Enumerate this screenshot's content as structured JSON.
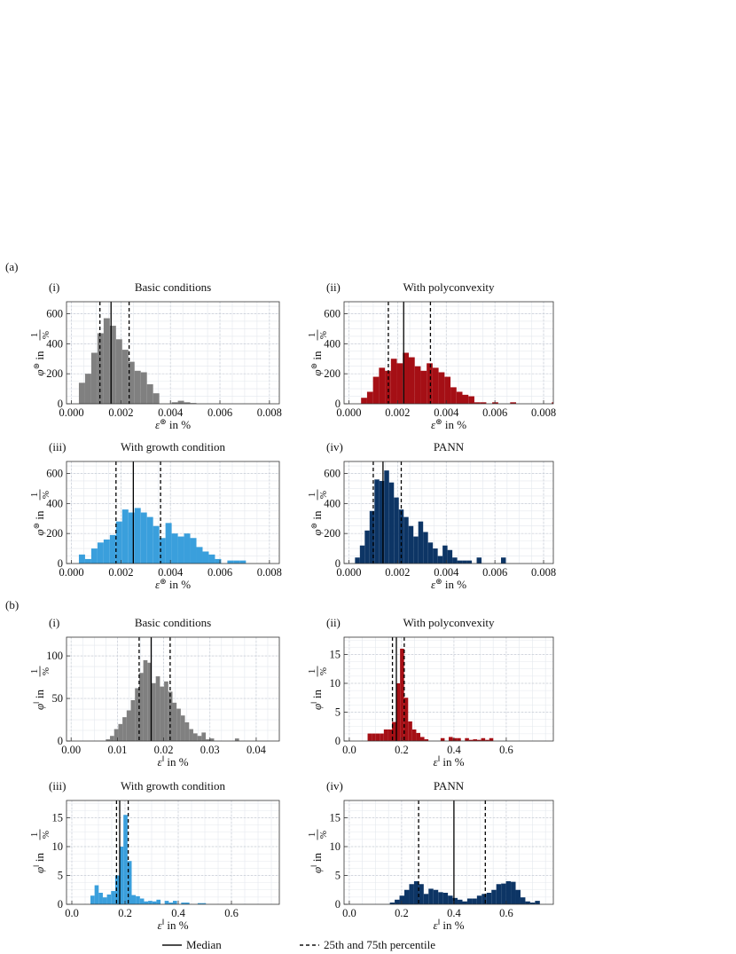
{
  "figure": {
    "section_labels": [
      "(a)",
      "(b)"
    ],
    "legend": {
      "median_label": "Median",
      "percentile_label": "25th and 75th percentile"
    }
  },
  "chart_data": [
    {
      "id": "a-i",
      "section": "(a)",
      "roman": "(i)",
      "title": "Basic conditions",
      "type": "bar",
      "color": "#808080",
      "xlabel": "ε^⊚ in %",
      "ylabel": "φ^⊚ in 1/%",
      "xlim": [
        -0.0002,
        0.0084
      ],
      "ylim": [
        0,
        680
      ],
      "xticks": [
        0,
        0.002,
        0.004,
        0.006,
        0.008
      ],
      "xticklabels": [
        "0.000",
        "0.002",
        "0.004",
        "0.006",
        "0.008"
      ],
      "yticks": [
        0,
        200,
        400,
        600
      ],
      "yticklabels": [
        "0",
        "200",
        "400",
        "600"
      ],
      "bin_start": 0.0003,
      "bin_width": 0.00025,
      "values": [
        140,
        200,
        340,
        470,
        570,
        520,
        430,
        360,
        280,
        220,
        210,
        130,
        70,
        0,
        0,
        10,
        20,
        10,
        5
      ],
      "median": 0.0016,
      "percentiles": [
        0.00115,
        0.00233
      ]
    },
    {
      "id": "a-ii",
      "section": "(a)",
      "roman": "(ii)",
      "title": "With polyconvexity",
      "type": "bar",
      "color": "#a50f15",
      "xlabel": "ε^⊚ in %",
      "ylabel": "φ^⊚ in 1/%",
      "xlim": [
        -0.0002,
        0.0084
      ],
      "ylim": [
        0,
        680
      ],
      "xticks": [
        0,
        0.002,
        0.004,
        0.006,
        0.008
      ],
      "xticklabels": [
        "0.000",
        "0.002",
        "0.004",
        "0.006",
        "0.008"
      ],
      "yticks": [
        0,
        200,
        400,
        600
      ],
      "yticklabels": [
        "0",
        "200",
        "400",
        "600"
      ],
      "bin_start": 0.0005,
      "bin_width": 0.000245,
      "values": [
        40,
        80,
        180,
        240,
        220,
        300,
        270,
        340,
        310,
        250,
        220,
        270,
        240,
        210,
        180,
        110,
        80,
        60,
        50,
        10,
        10,
        0,
        10,
        0,
        0,
        10,
        0,
        0,
        0,
        0,
        0,
        0,
        10
      ],
      "median": 0.00225,
      "percentiles": [
        0.00162,
        0.00335
      ]
    },
    {
      "id": "a-iii",
      "section": "(a)",
      "roman": "(iii)",
      "title": "With growth condition",
      "type": "bar",
      "color": "#3a9fdc",
      "xlabel": "ε^⊚ in %",
      "ylabel": "φ^⊚ in 1/%",
      "xlim": [
        -0.0002,
        0.0084
      ],
      "ylim": [
        0,
        680
      ],
      "xticks": [
        0,
        0.002,
        0.004,
        0.006,
        0.008
      ],
      "xticklabels": [
        "0.000",
        "0.002",
        "0.004",
        "0.006",
        "0.008"
      ],
      "yticks": [
        0,
        200,
        400,
        600
      ],
      "yticklabels": [
        "0",
        "200",
        "400",
        "600"
      ],
      "bin_start": 0.0003,
      "bin_width": 0.00025,
      "values": [
        60,
        30,
        100,
        140,
        160,
        190,
        280,
        360,
        340,
        370,
        340,
        310,
        250,
        170,
        270,
        200,
        180,
        200,
        170,
        110,
        80,
        60,
        30,
        0,
        20,
        20,
        20
      ],
      "median": 0.0025,
      "percentiles": [
        0.0018,
        0.0036
      ]
    },
    {
      "id": "a-iv",
      "section": "(a)",
      "roman": "(iv)",
      "title": "PANN",
      "type": "bar",
      "color": "#0d3565",
      "xlabel": "ε^⊚ in %",
      "ylabel": "φ^⊚ in 1/%",
      "xlim": [
        -0.0002,
        0.0084
      ],
      "ylim": [
        0,
        680
      ],
      "xticks": [
        0,
        0.002,
        0.004,
        0.006,
        0.008
      ],
      "xticklabels": [
        "0.000",
        "0.002",
        "0.004",
        "0.006",
        "0.008"
      ],
      "yticks": [
        0,
        200,
        400,
        600
      ],
      "yticklabels": [
        "0",
        "200",
        "400",
        "600"
      ],
      "bin_start": 0.00025,
      "bin_width": 0.0002,
      "values": [
        40,
        120,
        220,
        350,
        560,
        550,
        620,
        540,
        440,
        360,
        310,
        250,
        180,
        280,
        210,
        140,
        100,
        50,
        120,
        90,
        40,
        20,
        20,
        20,
        0,
        40,
        0,
        0,
        0,
        0,
        40
      ],
      "median": 0.0014,
      "percentiles": [
        0.001,
        0.00215
      ]
    },
    {
      "id": "b-i",
      "section": "(b)",
      "roman": "(i)",
      "title": "Basic conditions",
      "type": "bar",
      "color": "#808080",
      "xlabel": "ε^‖ in %",
      "ylabel": "φ^‖ in 1/%",
      "xlim": [
        -0.001,
        0.045
      ],
      "ylim": [
        0,
        122
      ],
      "xticks": [
        0,
        0.01,
        0.02,
        0.03,
        0.04
      ],
      "xticklabels": [
        "0.00",
        "0.01",
        "0.02",
        "0.03",
        "0.04"
      ],
      "yticks": [
        0,
        50,
        100
      ],
      "yticklabels": [
        "0",
        "50",
        "100"
      ],
      "bin_start": 0.0075,
      "bin_width": 0.0009,
      "values": [
        2,
        6,
        14,
        20,
        28,
        36,
        48,
        62,
        80,
        95,
        92,
        68,
        76,
        64,
        70,
        58,
        45,
        38,
        30,
        22,
        14,
        9,
        6,
        10,
        2,
        3,
        0,
        0,
        0,
        0,
        0,
        3,
        0
      ],
      "median": 0.0173,
      "percentiles": [
        0.0147,
        0.0214
      ]
    },
    {
      "id": "b-ii",
      "section": "(b)",
      "roman": "(ii)",
      "title": "With polyconvexity",
      "type": "bar",
      "color": "#a50f15",
      "xlabel": "ε^‖ in %",
      "ylabel": "φ^‖ in 1/%",
      "xlim": [
        -0.02,
        0.78
      ],
      "ylim": [
        0,
        18
      ],
      "xticks": [
        0,
        0.2,
        0.4,
        0.6
      ],
      "xticklabels": [
        "0.0",
        "0.2",
        "0.4",
        "0.6"
      ],
      "yticks": [
        0,
        5,
        10,
        15
      ],
      "yticklabels": [
        "0",
        "5",
        "10",
        "15"
      ],
      "bin_start": 0.07,
      "bin_width": 0.0155,
      "values": [
        1.3,
        1.3,
        1.3,
        1.3,
        2.0,
        2.0,
        3.3,
        10.0,
        16.0,
        7.5,
        3.4,
        2.0,
        1.4,
        0.7,
        0.3,
        0,
        0,
        0,
        0.5,
        0,
        0.7,
        0.5,
        0.5,
        0,
        0.5,
        0.2,
        0.3,
        0.2,
        0.5,
        0.2,
        0.5
      ],
      "median": 0.18,
      "percentiles": [
        0.165,
        0.21
      ]
    },
    {
      "id": "b-iii",
      "section": "(b)",
      "roman": "(iii)",
      "title": "With growth condition",
      "type": "bar",
      "color": "#3a9fdc",
      "xlabel": "ε^‖ in %",
      "ylabel": "φ^‖ in 1/%",
      "xlim": [
        -0.02,
        0.78
      ],
      "ylim": [
        0,
        18
      ],
      "xticks": [
        0,
        0.2,
        0.4,
        0.6
      ],
      "xticklabels": [
        "0.0",
        "0.2",
        "0.4",
        "0.6"
      ],
      "yticks": [
        0,
        5,
        10,
        15
      ],
      "yticklabels": [
        "0",
        "5",
        "10",
        "15"
      ],
      "bin_start": 0.07,
      "bin_width": 0.0155,
      "values": [
        1.5,
        3.3,
        2.0,
        1.2,
        1.7,
        2.3,
        5.0,
        10.0,
        15.5,
        7.5,
        1.6,
        1.4,
        1.0,
        0.5,
        0.6,
        0.5,
        0.8,
        0,
        0.6,
        0.3,
        0.6,
        0,
        0.3,
        0.3,
        0,
        0,
        0.2,
        0.2
      ],
      "median": 0.18,
      "percentiles": [
        0.168,
        0.212
      ]
    },
    {
      "id": "b-iv",
      "section": "(b)",
      "roman": "(iv)",
      "title": "PANN",
      "type": "bar",
      "color": "#0d3565",
      "xlabel": "ε^‖ in %",
      "ylabel": "φ^‖ in 1/%",
      "xlim": [
        -0.02,
        0.78
      ],
      "ylim": [
        0,
        18
      ],
      "xticks": [
        0,
        0.2,
        0.4,
        0.6
      ],
      "xticklabels": [
        "0.0",
        "0.2",
        "0.4",
        "0.6"
      ],
      "yticks": [
        0,
        5,
        10,
        15
      ],
      "yticklabels": [
        "0",
        "5",
        "10",
        "15"
      ],
      "bin_start": 0.155,
      "bin_width": 0.0185,
      "values": [
        0.3,
        0.8,
        1.5,
        2.5,
        3.5,
        4.0,
        3.5,
        1.8,
        2.7,
        2.5,
        2.1,
        2.0,
        1.5,
        1.1,
        0.8,
        0.5,
        1.0,
        1.0,
        1.5,
        1.8,
        2.0,
        2.5,
        3.5,
        3.6,
        4.0,
        3.9,
        2.5,
        1.2,
        0.5,
        0.3,
        0.6,
        0,
        0,
        0,
        0,
        0,
        0,
        0,
        0,
        0,
        0,
        0,
        0.6
      ],
      "median": 0.4,
      "percentiles": [
        0.265,
        0.52
      ]
    }
  ]
}
